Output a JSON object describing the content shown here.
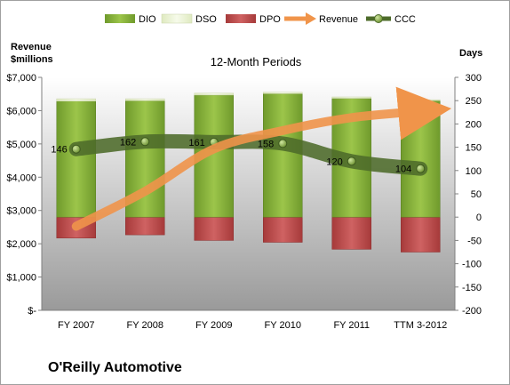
{
  "chart_data": {
    "type": "bar",
    "title": "12-Month Periods",
    "company": "O'Reilly Automotive",
    "left_axis_title_line1": "Revenue",
    "left_axis_title_line2": "$millions",
    "right_axis_title": "Days",
    "categories": [
      "FY 2007",
      "FY 2008",
      "FY 2009",
      "FY 2010",
      "FY 2011",
      "TTM 3-2012"
    ],
    "left_axis": {
      "min": 0,
      "max": 7000,
      "step": 1000,
      "tick_labels": [
        "$-",
        "$1,000",
        "$2,000",
        "$3,000",
        "$4,000",
        "$5,000",
        "$6,000",
        "$7,000"
      ]
    },
    "right_axis": {
      "min": -200,
      "max": 300,
      "step": 50,
      "tick_labels": [
        "-200",
        "-150",
        "-100",
        "-50",
        "0",
        "50",
        "100",
        "150",
        "200",
        "250",
        "300"
      ]
    },
    "legend": [
      {
        "name": "DIO",
        "color": "#7aa23a"
      },
      {
        "name": "DSO",
        "color": "#e6f0c8"
      },
      {
        "name": "DPO",
        "color": "#b84444"
      },
      {
        "name": "Revenue",
        "color": "#f0944a"
      },
      {
        "name": "CCC",
        "color": "#4d6b2a"
      }
    ],
    "series": [
      {
        "name": "DIO",
        "axis": "right",
        "values": [
          249,
          250,
          262,
          265,
          255,
          250
        ]
      },
      {
        "name": "DSO",
        "axis": "right",
        "values": [
          5,
          4,
          4,
          3,
          3,
          2
        ]
      },
      {
        "name": "DPO",
        "axis": "right",
        "values": [
          -45,
          -38,
          -50,
          -54,
          -69,
          -75
        ]
      },
      {
        "name": "Revenue",
        "axis": "left",
        "values": [
          2525,
          3575,
          4850,
          5400,
          5790,
          5980
        ]
      },
      {
        "name": "CCC",
        "axis": "right",
        "values": [
          146,
          162,
          161,
          158,
          120,
          104
        ]
      }
    ],
    "ccc_labels": [
      "146",
      "162",
      "161",
      "158",
      "120",
      "104"
    ]
  }
}
